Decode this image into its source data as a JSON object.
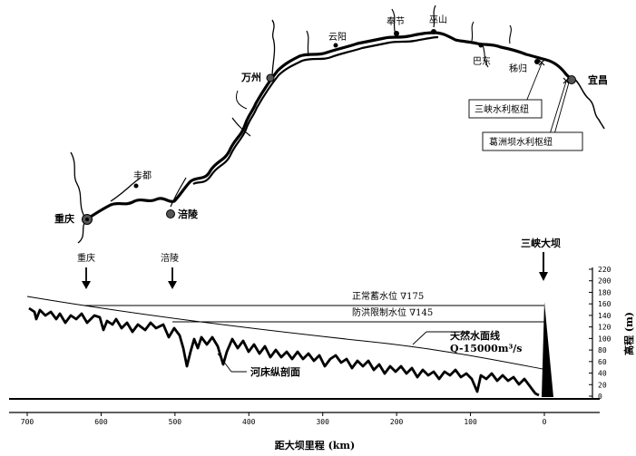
{
  "map": {
    "cities": [
      {
        "name": "重庆",
        "bold": true
      },
      {
        "name": "丰都",
        "bold": false
      },
      {
        "name": "涪陵",
        "bold": true
      },
      {
        "name": "万州",
        "bold": true
      },
      {
        "name": "云阳",
        "bold": false
      },
      {
        "name": "奉节",
        "bold": false
      },
      {
        "name": "巫山",
        "bold": false
      },
      {
        "name": "巴东",
        "bold": false
      },
      {
        "name": "秭归",
        "bold": false
      },
      {
        "name": "宜昌",
        "bold": true
      }
    ],
    "callouts": {
      "three_gorges_project": "三峡水利枢纽",
      "gezhouba_project": "葛洲坝水利枢纽"
    }
  },
  "profile": {
    "markers": {
      "chongqing": "重庆",
      "fuling": "涪陵",
      "dam": "三峡大坝"
    },
    "water_levels": {
      "normal_storage": "正常蓄水位 ∇175",
      "flood_limit": "防洪限制水位 ∇145",
      "natural_surface": "天然水面线",
      "discharge": "Q-15000m³/s"
    },
    "riverbed_label": "河床纵剖面",
    "x_axis": {
      "label": "距大坝里程 (km)",
      "ticks": [
        "700",
        "600",
        "500",
        "400",
        "300",
        "200",
        "100",
        "0"
      ]
    },
    "y_axis": {
      "label": "高程 (m)",
      "ticks": [
        "0",
        "20",
        "40",
        "60",
        "80",
        "100",
        "120",
        "140",
        "160",
        "180",
        "200",
        "220"
      ]
    }
  }
}
